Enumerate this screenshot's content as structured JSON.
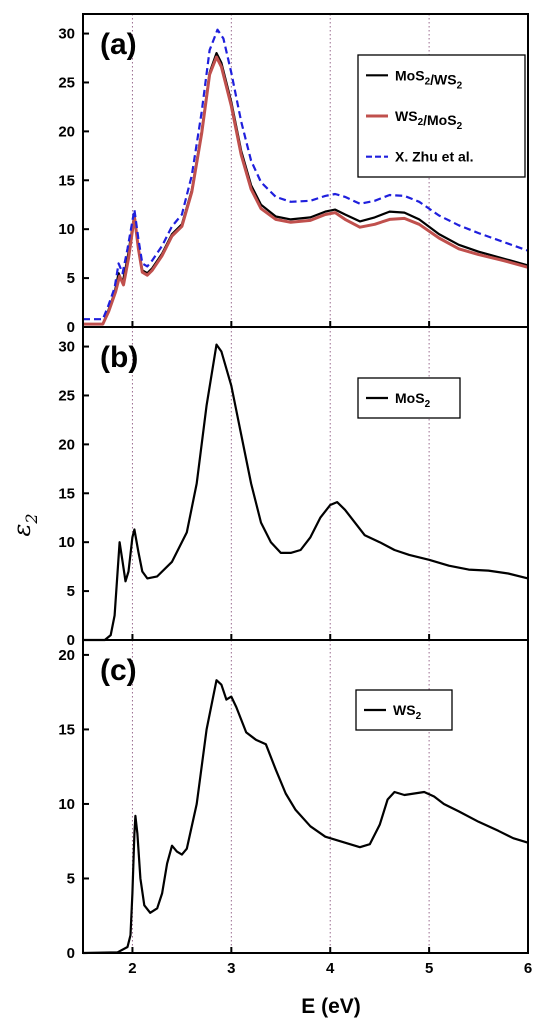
{
  "figure": {
    "xlabel": "E (eV)",
    "ylabel_symbol": "ε",
    "ylabel_sub": "2"
  },
  "chart_data": [
    {
      "type": "line",
      "panel_label": "(a)",
      "xlim": [
        1.5,
        6
      ],
      "ylim": [
        0,
        32
      ],
      "xticks": [
        2,
        3,
        4,
        5,
        6
      ],
      "yticks": [
        0,
        5,
        10,
        15,
        20,
        25,
        30
      ],
      "grid": "vertical dotted at x ticks",
      "legend_placement": "top-right",
      "series": [
        {
          "name": "MoS₂/WS₂",
          "color": "#000000",
          "style": "solid",
          "points": [
            [
              1.5,
              0.3
            ],
            [
              1.7,
              0.3
            ],
            [
              1.75,
              1.5
            ],
            [
              1.82,
              3.5
            ],
            [
              1.86,
              5.5
            ],
            [
              1.9,
              4.5
            ],
            [
              1.95,
              7
            ],
            [
              2.02,
              11.5
            ],
            [
              2.06,
              8
            ],
            [
              2.1,
              5.8
            ],
            [
              2.15,
              5.5
            ],
            [
              2.2,
              6
            ],
            [
              2.3,
              7.5
            ],
            [
              2.4,
              9.5
            ],
            [
              2.5,
              10.5
            ],
            [
              2.6,
              14
            ],
            [
              2.7,
              20
            ],
            [
              2.78,
              26
            ],
            [
              2.85,
              28
            ],
            [
              2.9,
              27
            ],
            [
              3.0,
              23
            ],
            [
              3.1,
              18
            ],
            [
              3.2,
              14.5
            ],
            [
              3.3,
              12.5
            ],
            [
              3.45,
              11.3
            ],
            [
              3.6,
              11
            ],
            [
              3.8,
              11.2
            ],
            [
              3.95,
              11.8
            ],
            [
              4.05,
              12.0
            ],
            [
              4.15,
              11.5
            ],
            [
              4.3,
              10.8
            ],
            [
              4.45,
              11.2
            ],
            [
              4.6,
              11.8
            ],
            [
              4.75,
              11.7
            ],
            [
              4.9,
              11
            ],
            [
              5.1,
              9.5
            ],
            [
              5.3,
              8.4
            ],
            [
              5.5,
              7.7
            ],
            [
              5.75,
              7
            ],
            [
              6.0,
              6.3
            ]
          ]
        },
        {
          "name": "WS₂/MoS₂",
          "color": "#c0504d",
          "style": "solid",
          "points": [
            [
              1.5,
              0.3
            ],
            [
              1.7,
              0.3
            ],
            [
              1.76,
              1.6
            ],
            [
              1.83,
              3.6
            ],
            [
              1.87,
              5.2
            ],
            [
              1.91,
              4.3
            ],
            [
              1.96,
              7
            ],
            [
              2.02,
              11.3
            ],
            [
              2.06,
              8
            ],
            [
              2.1,
              5.6
            ],
            [
              2.15,
              5.3
            ],
            [
              2.2,
              5.8
            ],
            [
              2.3,
              7.3
            ],
            [
              2.4,
              9.3
            ],
            [
              2.5,
              10.3
            ],
            [
              2.6,
              13.8
            ],
            [
              2.7,
              19.8
            ],
            [
              2.78,
              25.8
            ],
            [
              2.85,
              27.6
            ],
            [
              2.9,
              26.6
            ],
            [
              3.0,
              22.6
            ],
            [
              3.1,
              17.6
            ],
            [
              3.2,
              14.1
            ],
            [
              3.3,
              12.1
            ],
            [
              3.45,
              11.0
            ],
            [
              3.6,
              10.7
            ],
            [
              3.8,
              10.9
            ],
            [
              3.95,
              11.5
            ],
            [
              4.05,
              11.7
            ],
            [
              4.15,
              11.0
            ],
            [
              4.3,
              10.2
            ],
            [
              4.45,
              10.5
            ],
            [
              4.6,
              11.0
            ],
            [
              4.75,
              11.1
            ],
            [
              4.9,
              10.5
            ],
            [
              5.1,
              9.1
            ],
            [
              5.3,
              8.0
            ],
            [
              5.5,
              7.4
            ],
            [
              5.75,
              6.8
            ],
            [
              6.0,
              6.1
            ]
          ]
        },
        {
          "name": "X. Zhu et al.",
          "color": "#1f1fdd",
          "style": "dashed",
          "points": [
            [
              1.5,
              0.8
            ],
            [
              1.7,
              0.8
            ],
            [
              1.75,
              2
            ],
            [
              1.82,
              4
            ],
            [
              1.86,
              6.5
            ],
            [
              1.9,
              5.5
            ],
            [
              1.95,
              8
            ],
            [
              2.02,
              12
            ],
            [
              2.06,
              9
            ],
            [
              2.1,
              6.5
            ],
            [
              2.15,
              6.2
            ],
            [
              2.2,
              6.8
            ],
            [
              2.3,
              8.3
            ],
            [
              2.4,
              10.3
            ],
            [
              2.5,
              11.5
            ],
            [
              2.6,
              15.5
            ],
            [
              2.7,
              22
            ],
            [
              2.78,
              28.3
            ],
            [
              2.86,
              30.4
            ],
            [
              2.92,
              29.5
            ],
            [
              3.0,
              26
            ],
            [
              3.1,
              21
            ],
            [
              3.2,
              17
            ],
            [
              3.3,
              14.8
            ],
            [
              3.45,
              13.3
            ],
            [
              3.6,
              12.8
            ],
            [
              3.8,
              12.9
            ],
            [
              3.95,
              13.4
            ],
            [
              4.05,
              13.6
            ],
            [
              4.15,
              13.3
            ],
            [
              4.3,
              12.6
            ],
            [
              4.45,
              12.9
            ],
            [
              4.6,
              13.5
            ],
            [
              4.75,
              13.4
            ],
            [
              4.9,
              12.8
            ],
            [
              5.1,
              11.4
            ],
            [
              5.3,
              10.4
            ],
            [
              5.5,
              9.6
            ],
            [
              5.75,
              8.7
            ],
            [
              6.0,
              7.8
            ]
          ]
        }
      ]
    },
    {
      "type": "line",
      "panel_label": "(b)",
      "xlim": [
        1.5,
        6
      ],
      "ylim": [
        0,
        32
      ],
      "xticks": [
        2,
        3,
        4,
        5,
        6
      ],
      "yticks": [
        0,
        5,
        10,
        15,
        20,
        25,
        30
      ],
      "grid": "vertical dotted at x ticks",
      "legend_placement": "top-right",
      "series": [
        {
          "name": "MoS₂",
          "color": "#000000",
          "style": "solid",
          "points": [
            [
              1.5,
              0
            ],
            [
              1.72,
              0
            ],
            [
              1.78,
              0.5
            ],
            [
              1.82,
              2.5
            ],
            [
              1.85,
              7
            ],
            [
              1.87,
              10
            ],
            [
              1.9,
              8
            ],
            [
              1.93,
              6
            ],
            [
              1.96,
              7
            ],
            [
              2.0,
              10.5
            ],
            [
              2.02,
              11.3
            ],
            [
              2.06,
              9
            ],
            [
              2.1,
              7
            ],
            [
              2.15,
              6.3
            ],
            [
              2.25,
              6.5
            ],
            [
              2.4,
              8
            ],
            [
              2.55,
              11
            ],
            [
              2.65,
              16
            ],
            [
              2.75,
              24
            ],
            [
              2.85,
              30.2
            ],
            [
              2.9,
              29.5
            ],
            [
              3.0,
              26
            ],
            [
              3.1,
              21
            ],
            [
              3.2,
              16
            ],
            [
              3.3,
              12
            ],
            [
              3.4,
              10
            ],
            [
              3.5,
              8.9
            ],
            [
              3.6,
              8.9
            ],
            [
              3.7,
              9.2
            ],
            [
              3.8,
              10.5
            ],
            [
              3.9,
              12.5
            ],
            [
              4.0,
              13.8
            ],
            [
              4.07,
              14.1
            ],
            [
              4.15,
              13.3
            ],
            [
              4.25,
              12
            ],
            [
              4.35,
              10.7
            ],
            [
              4.5,
              10
            ],
            [
              4.65,
              9.2
            ],
            [
              4.8,
              8.7
            ],
            [
              5.0,
              8.2
            ],
            [
              5.2,
              7.6
            ],
            [
              5.4,
              7.2
            ],
            [
              5.6,
              7.1
            ],
            [
              5.8,
              6.8
            ],
            [
              6.0,
              6.3
            ]
          ]
        }
      ]
    },
    {
      "type": "line",
      "panel_label": "(c)",
      "xlim": [
        1.5,
        6
      ],
      "ylim": [
        0,
        21
      ],
      "xticks": [
        2,
        3,
        4,
        5,
        6
      ],
      "yticks": [
        0,
        5,
        10,
        15,
        20
      ],
      "grid": "vertical dotted at x ticks",
      "legend_placement": "top-right",
      "series": [
        {
          "name": "WS₂",
          "color": "#000000",
          "style": "solid",
          "points": [
            [
              1.5,
              0
            ],
            [
              1.85,
              0.05
            ],
            [
              1.95,
              0.4
            ],
            [
              1.98,
              1.2
            ],
            [
              2.0,
              4
            ],
            [
              2.02,
              8
            ],
            [
              2.03,
              9.2
            ],
            [
              2.05,
              8
            ],
            [
              2.08,
              5
            ],
            [
              2.12,
              3.2
            ],
            [
              2.18,
              2.7
            ],
            [
              2.25,
              3
            ],
            [
              2.3,
              4
            ],
            [
              2.35,
              6
            ],
            [
              2.4,
              7.2
            ],
            [
              2.45,
              6.8
            ],
            [
              2.5,
              6.6
            ],
            [
              2.55,
              7
            ],
            [
              2.65,
              10
            ],
            [
              2.75,
              15
            ],
            [
              2.85,
              18.3
            ],
            [
              2.9,
              18
            ],
            [
              2.95,
              17
            ],
            [
              3.0,
              17.2
            ],
            [
              3.05,
              16.5
            ],
            [
              3.15,
              14.8
            ],
            [
              3.25,
              14.3
            ],
            [
              3.35,
              14
            ],
            [
              3.45,
              12.3
            ],
            [
              3.55,
              10.7
            ],
            [
              3.65,
              9.6
            ],
            [
              3.8,
              8.5
            ],
            [
              3.95,
              7.8
            ],
            [
              4.1,
              7.5
            ],
            [
              4.2,
              7.3
            ],
            [
              4.3,
              7.1
            ],
            [
              4.4,
              7.3
            ],
            [
              4.5,
              8.6
            ],
            [
              4.58,
              10.3
            ],
            [
              4.65,
              10.8
            ],
            [
              4.75,
              10.6
            ],
            [
              4.85,
              10.7
            ],
            [
              4.95,
              10.8
            ],
            [
              5.05,
              10.5
            ],
            [
              5.15,
              10
            ],
            [
              5.3,
              9.5
            ],
            [
              5.5,
              8.8
            ],
            [
              5.7,
              8.2
            ],
            [
              5.85,
              7.7
            ],
            [
              6.0,
              7.4
            ]
          ]
        }
      ]
    }
  ]
}
